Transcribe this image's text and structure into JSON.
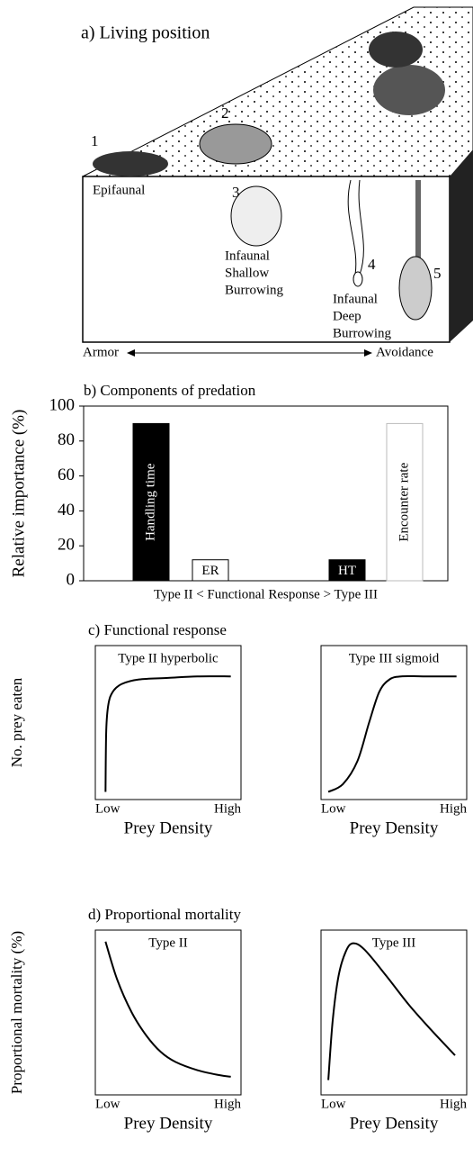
{
  "panel_a": {
    "title": "a) Living position",
    "numbers": [
      "1",
      "2",
      "3",
      "4",
      "5"
    ],
    "labels": {
      "epifaunal": "Epifaunal",
      "shallow": [
        "Infaunal",
        "Shallow",
        "Burrowing"
      ],
      "deep": [
        "Infaunal",
        "Deep",
        "Burrowing"
      ]
    },
    "axis": {
      "left": "Armor",
      "right": "Avoidance"
    }
  },
  "chart_data": [
    {
      "type": "bar",
      "title": "b) Components of predation",
      "ylabel": "Relative importance (%)",
      "xlabel": "Type II < Functional Response > Type III",
      "categories": [
        null,
        null,
        null,
        null
      ],
      "values": [
        90,
        12,
        12,
        90
      ],
      "bar_labels": [
        "Handling time",
        "ER",
        "HT",
        "Encounter rate"
      ],
      "colors": [
        "#000000",
        "#ffffff",
        "#000000",
        "#ffffff"
      ],
      "ylim": [
        0,
        100
      ],
      "yticks": [
        0,
        20,
        40,
        60,
        80,
        100
      ]
    },
    {
      "type": "line",
      "title": "c) Functional response",
      "ylabel": "No. prey eaten",
      "xlim": [
        0,
        1
      ],
      "ylim": [
        0,
        1
      ],
      "xticks": [
        {
          "value": 0,
          "label": "Low"
        },
        {
          "value": 1,
          "label": "High"
        }
      ],
      "panels": [
        {
          "title": "Type II hyperbolic",
          "xlabel": "Prey Density",
          "x": [
            0.07,
            0.075,
            0.09,
            0.12,
            0.18,
            0.3,
            0.5,
            0.7,
            0.93
          ],
          "values": [
            0.05,
            0.45,
            0.62,
            0.7,
            0.75,
            0.78,
            0.79,
            0.8,
            0.8
          ]
        },
        {
          "title": "Type III sigmoid",
          "xlabel": "Prey Density",
          "x": [
            0.05,
            0.15,
            0.25,
            0.33,
            0.4,
            0.47,
            0.55,
            0.7,
            0.93
          ],
          "values": [
            0.05,
            0.1,
            0.25,
            0.5,
            0.7,
            0.78,
            0.8,
            0.8,
            0.8
          ]
        }
      ]
    },
    {
      "type": "line",
      "title": "d) Proportional mortality",
      "ylabel": "Proportional mortality (%)",
      "xlim": [
        0,
        1
      ],
      "ylim": [
        0,
        1
      ],
      "xticks": [
        {
          "value": 0,
          "label": "Low"
        },
        {
          "value": 1,
          "label": "High"
        }
      ],
      "panels": [
        {
          "title": "Type II",
          "xlabel": "Prey Density",
          "x": [
            0.07,
            0.15,
            0.25,
            0.35,
            0.45,
            0.55,
            0.7,
            0.85,
            0.93
          ],
          "values": [
            0.93,
            0.7,
            0.5,
            0.36,
            0.26,
            0.2,
            0.15,
            0.12,
            0.11
          ]
        },
        {
          "title": "Type III",
          "xlabel": "Prey Density",
          "x": [
            0.05,
            0.08,
            0.12,
            0.17,
            0.22,
            0.3,
            0.45,
            0.6,
            0.75,
            0.92
          ],
          "values": [
            0.09,
            0.45,
            0.72,
            0.87,
            0.92,
            0.88,
            0.72,
            0.55,
            0.4,
            0.24
          ]
        }
      ]
    }
  ]
}
